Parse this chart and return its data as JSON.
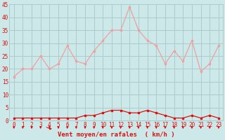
{
  "x": [
    0,
    1,
    2,
    3,
    4,
    5,
    6,
    7,
    8,
    9,
    10,
    11,
    12,
    13,
    14,
    15,
    16,
    17,
    18,
    19,
    20,
    21,
    22,
    23
  ],
  "rafales": [
    17,
    20,
    20,
    25,
    20,
    22,
    29,
    23,
    22,
    27,
    31,
    35,
    35,
    44,
    35,
    31,
    29,
    22,
    27,
    23,
    31,
    19,
    22,
    29
  ],
  "moyen": [
    1,
    1,
    1,
    1,
    1,
    1,
    1,
    1,
    2,
    2,
    3,
    4,
    4,
    3,
    3,
    4,
    3,
    2,
    1,
    1,
    2,
    1,
    2,
    1
  ],
  "bg_color": "#cce8e8",
  "grid_color": "#aacccc",
  "line_color_rafales": "#f0a0a0",
  "line_color_moyen": "#dd1111",
  "xlabel": "Vent moyen/en rafales  ( km/h )",
  "ylim": [
    0,
    45
  ],
  "xlim": [
    -0.5,
    23.5
  ],
  "yticks": [
    0,
    5,
    10,
    15,
    20,
    25,
    30,
    35,
    40,
    45
  ],
  "xticks": [
    0,
    1,
    2,
    3,
    4,
    5,
    6,
    7,
    8,
    9,
    10,
    11,
    12,
    13,
    14,
    15,
    16,
    17,
    18,
    19,
    20,
    21,
    22,
    23
  ],
  "tick_fontsize": 5.5,
  "xlabel_fontsize": 6.5
}
